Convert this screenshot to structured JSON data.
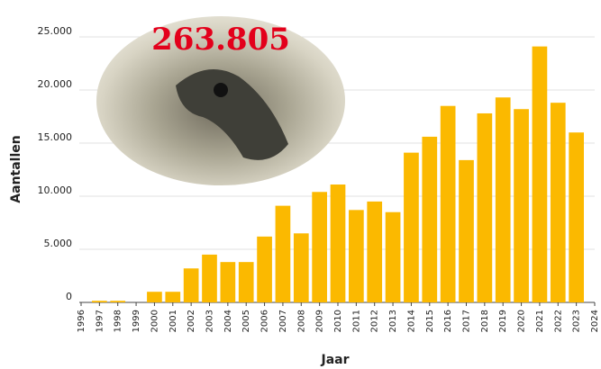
{
  "chart_data": {
    "type": "bar",
    "annotation": "263.805",
    "xlabel": "Jaar",
    "ylabel": "Aantallen",
    "x": [
      1997,
      1998,
      2000,
      2001,
      2002,
      2003,
      2004,
      2005,
      2006,
      2007,
      2008,
      2009,
      2010,
      2011,
      2012,
      2013,
      2014,
      2015,
      2016,
      2017,
      2018,
      2019,
      2020,
      2021,
      2022,
      2023
    ],
    "values": [
      150,
      150,
      1000,
      1000,
      3200,
      4500,
      3800,
      3800,
      6200,
      9100,
      6500,
      10400,
      11100,
      8700,
      9500,
      8500,
      14100,
      15600,
      18500,
      13400,
      17800,
      19300,
      18200,
      24100,
      18800,
      16000
    ],
    "color": "#fbb900",
    "xlim": [
      1996,
      2024
    ],
    "xticks": [
      1996,
      1997,
      1998,
      1999,
      2000,
      2001,
      2002,
      2003,
      2004,
      2005,
      2006,
      2007,
      2008,
      2009,
      2010,
      2011,
      2012,
      2013,
      2014,
      2015,
      2016,
      2017,
      2018,
      2019,
      2020,
      2021,
      2022,
      2023,
      2024
    ],
    "ylim": [
      0,
      25000
    ],
    "yticks": [
      0,
      {
        "value": 5000,
        "label": "5.000"
      },
      {
        "value": 10000,
        "label": "10.000"
      },
      {
        "value": 15000,
        "label": "15.000"
      },
      {
        "value": 20000,
        "label": "20.000"
      },
      {
        "value": 25000,
        "label": "25.000"
      }
    ],
    "grid": true
  }
}
